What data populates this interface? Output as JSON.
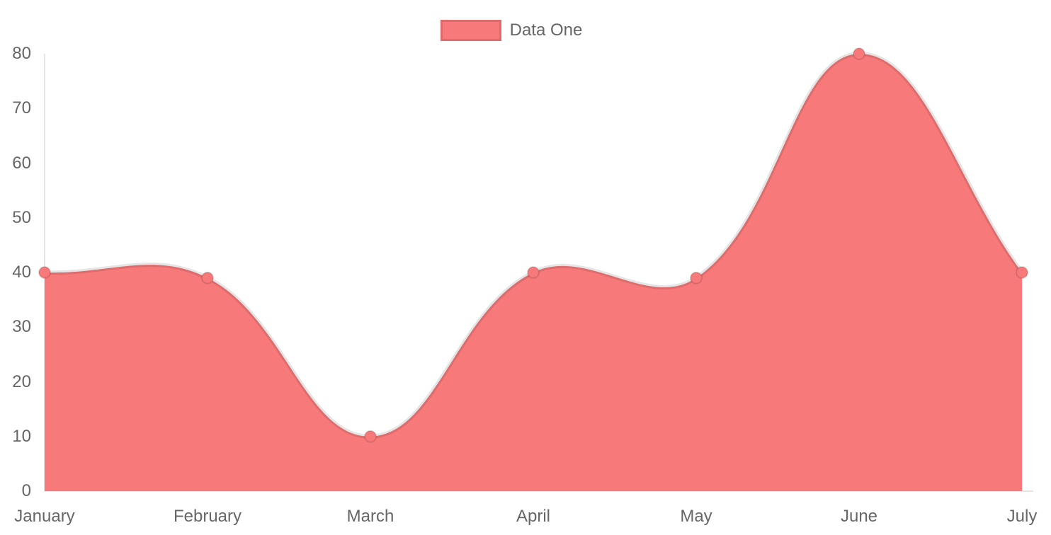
{
  "chart_data": {
    "type": "area",
    "title": "",
    "xlabel": "",
    "ylabel": "",
    "categories": [
      "January",
      "February",
      "March",
      "April",
      "May",
      "June",
      "July"
    ],
    "series": [
      {
        "name": "Data One",
        "values": [
          40,
          39,
          10,
          40,
          39,
          80,
          40
        ],
        "fill_color": "#f87979",
        "line_color": "rgba(0,0,0,0.1)",
        "point_color": "#f87979",
        "point_border_color": "rgba(0,0,0,0.12)"
      }
    ],
    "ylim": [
      0,
      80
    ],
    "yticks": [
      0,
      10,
      20,
      30,
      40,
      50,
      60,
      70,
      80
    ],
    "grid": false,
    "line_tension": 0.4,
    "axis_color": "rgba(0,0,0,0.1)",
    "tick_text_color": "#666666",
    "legend": {
      "position": "top",
      "label": "Data One",
      "swatch_color": "#f87979",
      "swatch_border_color": "rgba(0,0,0,0.1)"
    }
  }
}
